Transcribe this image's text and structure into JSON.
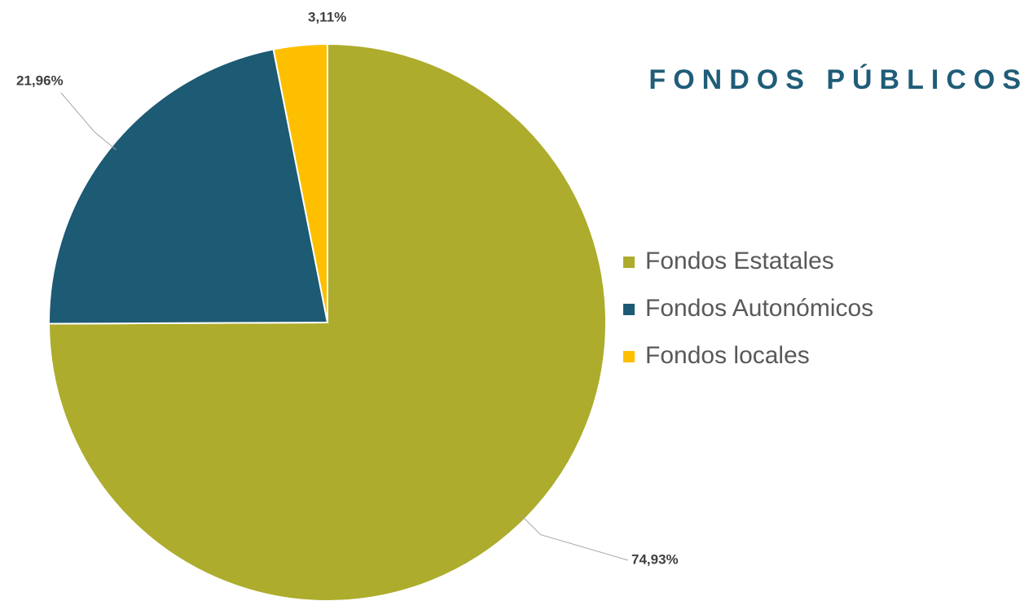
{
  "chart_data": {
    "type": "pie",
    "title": "FONDOS PÚBLICOS",
    "categories": [
      "Fondos Estatales",
      "Fondos Autonómicos",
      "Fondos locales"
    ],
    "values": [
      74.93,
      21.96,
      3.11
    ],
    "value_labels": [
      "74,93%",
      "21,96%",
      "3,11%"
    ],
    "colors": [
      "#adac2c",
      "#1d5a73",
      "#fdbf00"
    ],
    "legend": "right"
  }
}
